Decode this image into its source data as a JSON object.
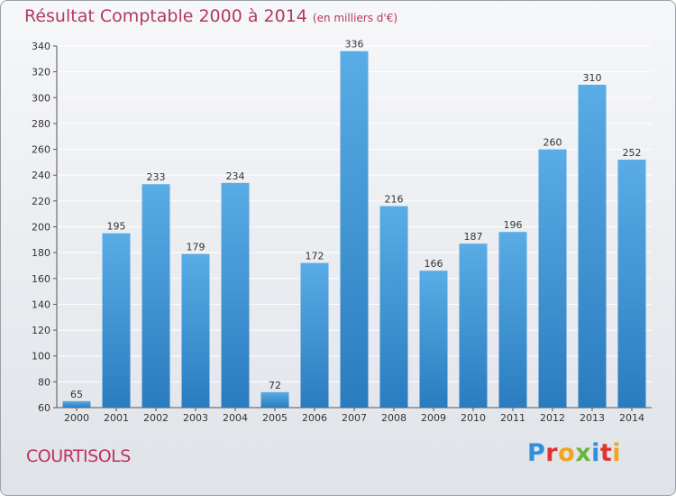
{
  "header": {
    "title": "Résultat Comptable 2000 à 2014",
    "subtitle": "(en milliers d'€)"
  },
  "footer": {
    "place": "COURTISOLS",
    "logo_letters": [
      "P",
      "r",
      "o",
      "x",
      "i",
      "t",
      "i"
    ],
    "logo_colors": [
      "#2f8fd8",
      "#e0342f",
      "#f2a41c",
      "#6bb53a",
      "#2f8fd8",
      "#e0342f",
      "#f2a41c"
    ]
  },
  "colors": {
    "bar_top": "#5aace6",
    "bar_bottom": "#2a7cbf",
    "grid": "#ffffff",
    "axis": "#555555"
  },
  "chart_data": {
    "type": "bar",
    "title": "Résultat Comptable 2000 à 2014",
    "subtitle": "(en milliers d'€)",
    "categories": [
      "2000",
      "2001",
      "2002",
      "2003",
      "2004",
      "2005",
      "2006",
      "2007",
      "2008",
      "2009",
      "2010",
      "2011",
      "2012",
      "2013",
      "2014"
    ],
    "values": [
      65,
      195,
      233,
      179,
      234,
      72,
      172,
      336,
      216,
      166,
      187,
      196,
      260,
      310,
      252
    ],
    "ylim": [
      60,
      340
    ],
    "yticks": [
      60,
      80,
      100,
      120,
      140,
      160,
      180,
      200,
      220,
      240,
      260,
      280,
      300,
      320,
      340
    ],
    "xlabel": "",
    "ylabel": "",
    "grid": true
  }
}
